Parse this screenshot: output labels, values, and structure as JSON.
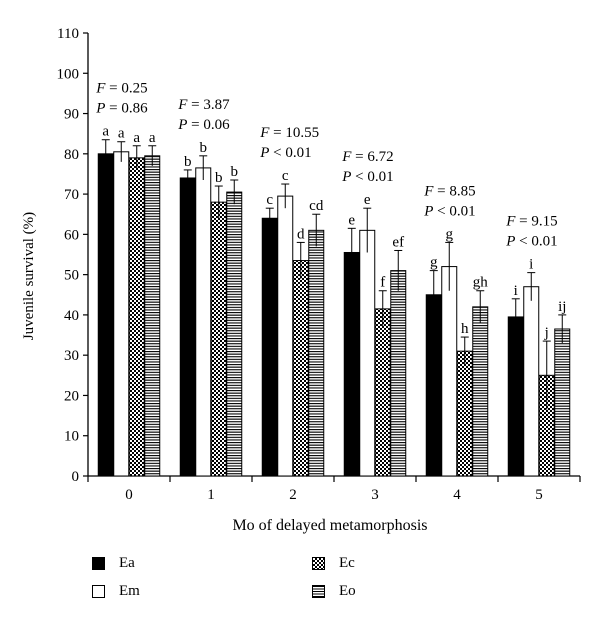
{
  "chart_data": {
    "type": "bar",
    "xlabel": "Mo of delayed metamorphosis",
    "ylabel": "Juvenile survival (%)",
    "ylim": [
      0,
      110
    ],
    "yticks": [
      0,
      10,
      20,
      30,
      40,
      50,
      60,
      70,
      80,
      90,
      100,
      110
    ],
    "categories": [
      "0",
      "1",
      "2",
      "3",
      "4",
      "5"
    ],
    "series": [
      {
        "name": "Ea",
        "pattern": "solid",
        "values": [
          80,
          74,
          64,
          55.5,
          45,
          39.5
        ],
        "errors": [
          3.5,
          2,
          2.5,
          6,
          6,
          4.5
        ],
        "letters": [
          "a",
          "b",
          "c",
          "e",
          "g",
          "i"
        ]
      },
      {
        "name": "Em",
        "pattern": "white",
        "values": [
          80.5,
          76.5,
          69.5,
          61,
          52,
          47
        ],
        "errors": [
          2.5,
          3,
          3,
          5.5,
          6,
          3.5
        ],
        "letters": [
          "a",
          "b",
          "c",
          "e",
          "g",
          "i"
        ]
      },
      {
        "name": "Ec",
        "pattern": "checker",
        "values": [
          79,
          68,
          53.5,
          41.5,
          31,
          25
        ],
        "errors": [
          3,
          4,
          4.5,
          4.5,
          3.5,
          8.5
        ],
        "letters": [
          "a",
          "b",
          "d",
          "f",
          "h",
          "j"
        ]
      },
      {
        "name": "Eo",
        "pattern": "hstripe",
        "values": [
          79.5,
          70.5,
          61,
          51,
          42,
          36.5
        ],
        "errors": [
          2.5,
          3,
          4,
          5,
          4,
          3.5
        ],
        "letters": [
          "a",
          "b",
          "cd",
          "ef",
          "gh",
          "ij"
        ]
      }
    ],
    "annotations": [
      {
        "F": "0.25",
        "P": "= 0.86"
      },
      {
        "F": "3.87",
        "P": "= 0.06"
      },
      {
        "F": "10.55",
        "P": "< 0.01"
      },
      {
        "F": "6.72",
        "P": "< 0.01"
      },
      {
        "F": "8.85",
        "P": "< 0.01"
      },
      {
        "F": "9.15",
        "P": "< 0.01"
      }
    ],
    "legend_position": "bottom"
  }
}
